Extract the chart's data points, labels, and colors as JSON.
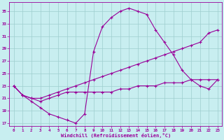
{
  "xlabel": "Windchill (Refroidissement éolien,°C)",
  "bg_color": "#c8eef0",
  "line_color": "#990099",
  "grid_color": "#9ecece",
  "xlim": [
    -0.5,
    23.5
  ],
  "ylim": [
    16.5,
    36.5
  ],
  "yticks": [
    17,
    19,
    21,
    23,
    25,
    27,
    29,
    31,
    33,
    35
  ],
  "xticks": [
    0,
    1,
    2,
    3,
    4,
    5,
    6,
    7,
    8,
    9,
    10,
    11,
    12,
    13,
    14,
    15,
    16,
    17,
    18,
    19,
    20,
    21,
    22,
    23
  ],
  "s1_x": [
    0,
    1,
    2,
    3,
    4,
    5,
    6,
    7,
    8,
    9,
    10,
    11,
    12,
    13,
    14,
    15,
    16,
    17,
    18,
    19,
    20,
    21,
    22,
    23
  ],
  "s1_y": [
    23,
    21.5,
    20.5,
    19.5,
    18.5,
    18.0,
    17.5,
    17.0,
    18.5,
    28.5,
    32.5,
    34.0,
    35.0,
    35.5,
    35.0,
    34.5,
    32.0,
    30.0,
    28.0,
    25.5,
    24.0,
    23.0,
    22.5,
    24.0
  ],
  "s2_x": [
    0,
    1,
    2,
    3,
    4,
    5,
    6,
    7,
    8,
    9,
    10,
    11,
    12,
    13,
    14,
    15,
    16,
    17,
    18,
    19,
    20,
    21,
    22,
    23
  ],
  "s2_y": [
    23,
    21.5,
    21.0,
    21.0,
    21.5,
    22.0,
    22.5,
    23.0,
    23.5,
    24.0,
    24.5,
    25.0,
    25.5,
    26.0,
    26.5,
    27.0,
    27.5,
    28.0,
    28.5,
    29.0,
    29.5,
    30.0,
    31.5,
    32.0
  ],
  "s3_x": [
    0,
    1,
    2,
    3,
    4,
    5,
    6,
    7,
    8,
    9,
    10,
    11,
    12,
    13,
    14,
    15,
    16,
    17,
    18,
    19,
    20,
    21,
    22,
    23
  ],
  "s3_y": [
    23,
    21.5,
    21.0,
    20.5,
    21.0,
    21.5,
    22.0,
    22.0,
    22.0,
    22.0,
    22.0,
    22.0,
    22.5,
    22.5,
    23.0,
    23.0,
    23.0,
    23.5,
    23.5,
    23.5,
    24.0,
    24.0,
    24.0,
    24.0
  ]
}
